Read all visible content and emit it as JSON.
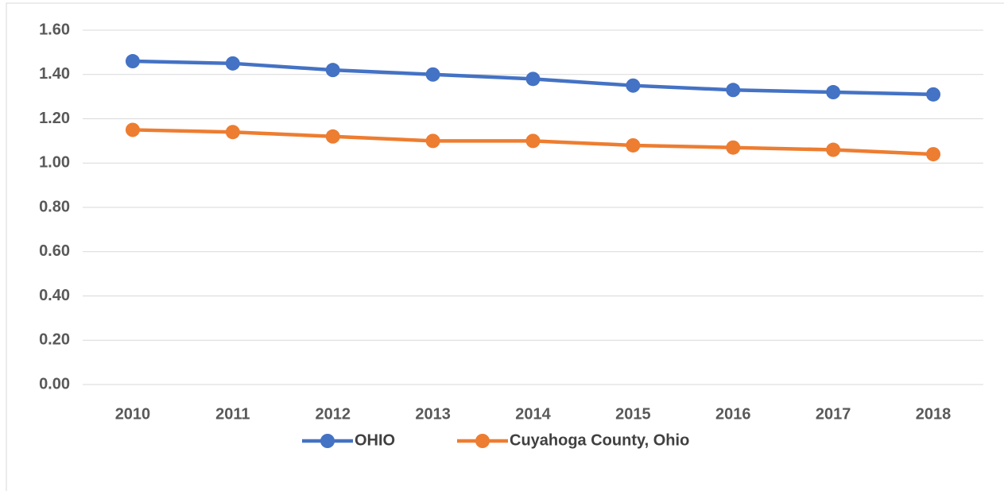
{
  "chart_data": {
    "type": "line",
    "categories": [
      "2010",
      "2011",
      "2012",
      "2013",
      "2014",
      "2015",
      "2016",
      "2017",
      "2018"
    ],
    "series": [
      {
        "name": "OHIO",
        "color": "#4472c4",
        "values": [
          1.46,
          1.45,
          1.42,
          1.4,
          1.38,
          1.35,
          1.33,
          1.32,
          1.31
        ]
      },
      {
        "name": "Cuyahoga County, Ohio",
        "color": "#ed7d31",
        "values": [
          1.15,
          1.14,
          1.12,
          1.1,
          1.1,
          1.08,
          1.07,
          1.06,
          1.04
        ]
      }
    ],
    "ylim": [
      0,
      1.6
    ],
    "yticks": [
      {
        "value": 0,
        "label": "0.00"
      },
      {
        "value": 0.2,
        "label": "0.20"
      },
      {
        "value": 0.4,
        "label": "0.40"
      },
      {
        "value": 0.6,
        "label": "0.60"
      },
      {
        "value": 0.8,
        "label": "0.80"
      },
      {
        "value": 1.0,
        "label": "1.00"
      },
      {
        "value": 1.2,
        "label": "1.20"
      },
      {
        "value": 1.4,
        "label": "1.40"
      },
      {
        "value": 1.6,
        "label": "1.60"
      }
    ],
    "grid": true,
    "legend": "bottom"
  }
}
